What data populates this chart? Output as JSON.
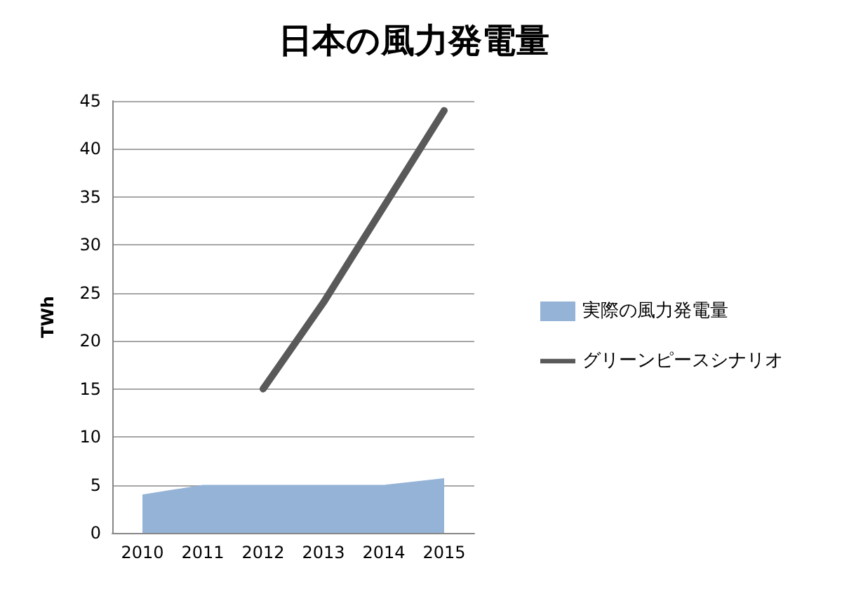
{
  "chart_data": {
    "type": "area",
    "title": "日本の風力発電量",
    "ylabel": "TWh",
    "categories": [
      "2010",
      "2011",
      "2012",
      "2013",
      "2014",
      "2015"
    ],
    "series": [
      {
        "name": "実際の風力発電量",
        "color": "#95b3d7",
        "values": [
          4.0,
          5.0,
          5.0,
          5.0,
          5.0,
          5.7
        ]
      },
      {
        "name": "グリーンピースシナリオ",
        "type": "line",
        "color": "#595959",
        "values": [
          null,
          null,
          15,
          24,
          34,
          44
        ]
      }
    ],
    "ylim": [
      0,
      45
    ],
    "yticks": [
      0,
      5,
      10,
      15,
      20,
      25,
      30,
      35,
      40,
      45
    ],
    "grid": "y",
    "legend": "right",
    "marker": "none"
  }
}
